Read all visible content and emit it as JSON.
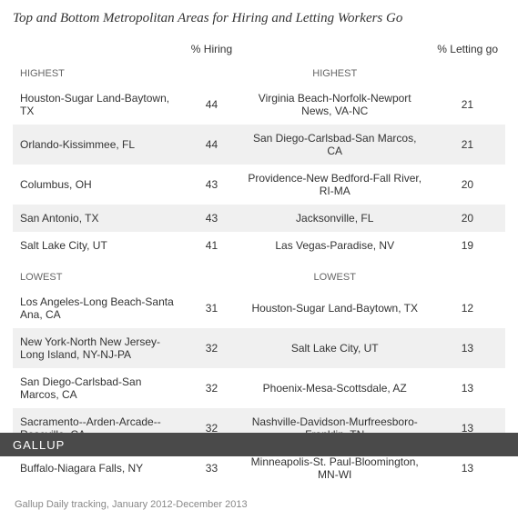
{
  "title": "Top and Bottom Metropolitan Areas for Hiring and Letting Workers Go",
  "columns": {
    "hiring_label": "% Hiring",
    "letting_label": "% Letting go"
  },
  "sections": {
    "highest_label": "HIGHEST",
    "lowest_label": "LOWEST"
  },
  "highest": [
    {
      "hiring_metro": "Houston-Sugar Land-Baytown, TX",
      "hiring_val": "44",
      "letting_metro": "Virginia Beach-Norfolk-Newport News, VA-NC",
      "letting_val": "21"
    },
    {
      "hiring_metro": "Orlando-Kissimmee, FL",
      "hiring_val": "44",
      "letting_metro": "San Diego-Carlsbad-San Marcos, CA",
      "letting_val": "21"
    },
    {
      "hiring_metro": "Columbus, OH",
      "hiring_val": "43",
      "letting_metro": "Providence-New Bedford-Fall River, RI-MA",
      "letting_val": "20"
    },
    {
      "hiring_metro": "San Antonio, TX",
      "hiring_val": "43",
      "letting_metro": "Jacksonville, FL",
      "letting_val": "20"
    },
    {
      "hiring_metro": "Salt Lake City, UT",
      "hiring_val": "41",
      "letting_metro": "Las Vegas-Paradise, NV",
      "letting_val": "19"
    }
  ],
  "lowest": [
    {
      "hiring_metro": "Los Angeles-Long Beach-Santa Ana, CA",
      "hiring_val": "31",
      "letting_metro": "Houston-Sugar Land-Baytown, TX",
      "letting_val": "12"
    },
    {
      "hiring_metro": "New York-North New Jersey-Long Island, NY-NJ-PA",
      "hiring_val": "32",
      "letting_metro": "Salt Lake City, UT",
      "letting_val": "13"
    },
    {
      "hiring_metro": "San Diego-Carlsbad-San Marcos, CA",
      "hiring_val": "32",
      "letting_metro": "Phoenix-Mesa-Scottsdale, AZ",
      "letting_val": "13"
    },
    {
      "hiring_metro": "Sacramento--Arden-Arcade--Roseville, CA",
      "hiring_val": "32",
      "letting_metro": "Nashville-Davidson-Murfreesboro-Franklin, TN",
      "letting_val": "13"
    },
    {
      "hiring_metro": "Buffalo-Niagara Falls, NY",
      "hiring_val": "33",
      "letting_metro": "Minneapolis-St. Paul-Bloomington, MN-WI",
      "letting_val": "13"
    }
  ],
  "footnote": "Gallup Daily tracking, January 2012-December 2013",
  "logo": "GALLUP",
  "colors": {
    "alt_row_bg": "#f0f0f0",
    "text": "#333333",
    "muted": "#666666",
    "footnote": "#888888",
    "logo_bg": "#4a4a4a",
    "logo_text": "#ffffff",
    "background": "#ffffff"
  },
  "typography": {
    "title_font": "Georgia, serif",
    "title_size_pt": 15,
    "body_font": "Arial, sans-serif",
    "body_size_pt": 12,
    "footnote_size_pt": 11
  }
}
